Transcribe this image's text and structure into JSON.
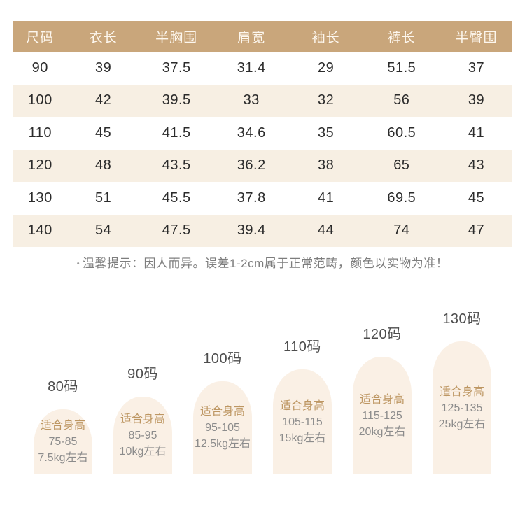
{
  "colors": {
    "header_bg": "#c9a67b",
    "header_text": "#fdf7ee",
    "row_alt_bg": "#f7efe3",
    "table_text": "#2b2b2b",
    "note_text": "#7d7d7d",
    "bar_bg": "#faf0e5",
    "bar_fit_text": "#bd9662",
    "bar_body_text": "#8c8c8c",
    "bar_label_text": "#4d4d4d"
  },
  "size_table": {
    "headers": [
      "尺码",
      "衣长",
      "半胸围",
      "肩宽",
      "袖长",
      "裤长",
      "半臀围"
    ],
    "rows": [
      {
        "cells": [
          "90",
          "39",
          "37.5",
          "31.4",
          "29",
          "51.5",
          "37"
        ]
      },
      {
        "cells": [
          "100",
          "42",
          "39.5",
          "33",
          "32",
          "56",
          "39"
        ]
      },
      {
        "cells": [
          "110",
          "45",
          "41.5",
          "34.6",
          "35",
          "60.5",
          "41"
        ]
      },
      {
        "cells": [
          "120",
          "48",
          "43.5",
          "36.2",
          "38",
          "65",
          "43"
        ]
      },
      {
        "cells": [
          "130",
          "51",
          "45.5",
          "37.8",
          "41",
          "69.5",
          "45"
        ]
      },
      {
        "cells": [
          "140",
          "54",
          "47.5",
          "39.4",
          "44",
          "74",
          "47"
        ]
      }
    ]
  },
  "note": {
    "bullet": "•",
    "text": "温馨提示：因人而异。误差1-2cm属于正常范畴，颜色以实物为准！"
  },
  "height_chart": {
    "fit_label": "适合身高",
    "bars": [
      {
        "label": "80码",
        "height_range": "75-85",
        "weight": "7.5kg左右"
      },
      {
        "label": "90码",
        "height_range": "85-95",
        "weight": "10kg左右"
      },
      {
        "label": "100码",
        "height_range": "95-105",
        "weight": "12.5kg左右"
      },
      {
        "label": "110码",
        "height_range": "105-115",
        "weight": "15kg左右"
      },
      {
        "label": "120码",
        "height_range": "115-125",
        "weight": "20kg左右"
      },
      {
        "label": "130码",
        "height_range": "125-135",
        "weight": "25kg左右"
      }
    ]
  },
  "chart_data": [
    {
      "type": "table",
      "title": "尺码表",
      "columns": [
        "尺码",
        "衣长",
        "半胸围",
        "肩宽",
        "袖长",
        "裤长",
        "半臀围"
      ],
      "rows": [
        [
          90,
          39,
          37.5,
          31.4,
          29,
          51.5,
          37
        ],
        [
          100,
          42,
          39.5,
          33,
          32,
          56,
          39
        ],
        [
          110,
          45,
          41.5,
          34.6,
          35,
          60.5,
          41
        ],
        [
          120,
          48,
          43.5,
          36.2,
          38,
          65,
          43
        ],
        [
          130,
          51,
          45.5,
          37.8,
          41,
          69.5,
          45
        ],
        [
          140,
          54,
          47.5,
          39.4,
          44,
          74,
          47
        ]
      ],
      "layout": {
        "header_style": "tan-filled",
        "zebra_rows": true,
        "grid": false
      }
    },
    {
      "type": "bar",
      "title": "",
      "categories": [
        "80码",
        "90码",
        "100码",
        "110码",
        "120码",
        "130码"
      ],
      "values": [
        93,
        111,
        133,
        150,
        168,
        190
      ],
      "value_unit": "px-bar-height (decorative, encodes size order)",
      "height_ranges_cm": [
        "75-85",
        "85-95",
        "95-105",
        "105-115",
        "115-125",
        "125-135"
      ],
      "weights": [
        "7.5kg左右",
        "10kg左右",
        "12.5kg左右",
        "15kg左右",
        "20kg左右",
        "25kg左右"
      ],
      "annotation_in_bar": "适合身高",
      "layout": {
        "baseline_aligned": true,
        "rounded_top_bars": true,
        "labels_above_bars": true,
        "grid": false,
        "axes": false
      }
    }
  ]
}
